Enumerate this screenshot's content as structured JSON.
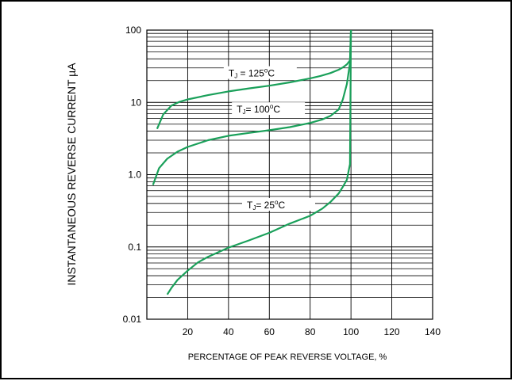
{
  "chart_data": {
    "type": "line",
    "title": "",
    "xlabel": "PERCENTAGE OF PEAK REVERSE VOLTAGE, %",
    "ylabel": "INSTANTANEOUS REVERSE CURRENT µA",
    "x_ticks": [
      "20",
      "40",
      "60",
      "80",
      "100",
      "120",
      "140"
    ],
    "y_ticks": [
      "0.01",
      "0.1",
      "1.0",
      "10",
      "100"
    ],
    "xlim": [
      0,
      140
    ],
    "ylim": [
      0.01,
      100
    ],
    "y_scale": "log",
    "grid": true,
    "line_color": "#1aa05a",
    "series": [
      {
        "name": "T = 125°C",
        "label_parts": {
          "sym": "T",
          "sub": "J",
          "eq": " = 125",
          "sup": "o",
          "unit": "C"
        },
        "label_at": [
          40,
          24
        ],
        "x": [
          5,
          8,
          12,
          16,
          20,
          30,
          40,
          50,
          60,
          70,
          80,
          85,
          90,
          94,
          96,
          98,
          99.5,
          100
        ],
        "y": [
          4.3,
          6.8,
          9.0,
          10.2,
          11.0,
          12.6,
          14.2,
          15.6,
          17.0,
          18.9,
          21.5,
          23.2,
          25.5,
          28.3,
          30.5,
          33.5,
          38,
          100
        ]
      },
      {
        "name": "T = 100°C",
        "label_parts": {
          "sym": "T",
          "sub": "J",
          "eq": "= 100",
          "sup": "o",
          "unit": "C"
        },
        "label_at": [
          44,
          7.6
        ],
        "x": [
          3,
          6,
          10,
          15,
          20,
          30,
          40,
          50,
          60,
          70,
          80,
          86,
          90,
          94,
          96,
          98,
          99.5,
          100
        ],
        "y": [
          0.72,
          1.23,
          1.66,
          2.08,
          2.42,
          3.0,
          3.45,
          3.78,
          4.12,
          4.55,
          5.2,
          5.8,
          6.5,
          8.0,
          11.0,
          18.0,
          35.0,
          100
        ]
      },
      {
        "name": "T = 25°C",
        "label_parts": {
          "sym": "T",
          "sub": "J",
          "eq": "= 25",
          "sup": "o",
          "unit": "C"
        },
        "label_at": [
          49,
          0.36
        ],
        "x": [
          10,
          12,
          15,
          20,
          25,
          30,
          40,
          50,
          60,
          70,
          80,
          86,
          90,
          94,
          96,
          98,
          99.5,
          100
        ],
        "y": [
          0.022,
          0.027,
          0.035,
          0.047,
          0.061,
          0.073,
          0.098,
          0.123,
          0.157,
          0.21,
          0.27,
          0.34,
          0.42,
          0.55,
          0.68,
          0.85,
          1.4,
          100
        ]
      }
    ]
  }
}
